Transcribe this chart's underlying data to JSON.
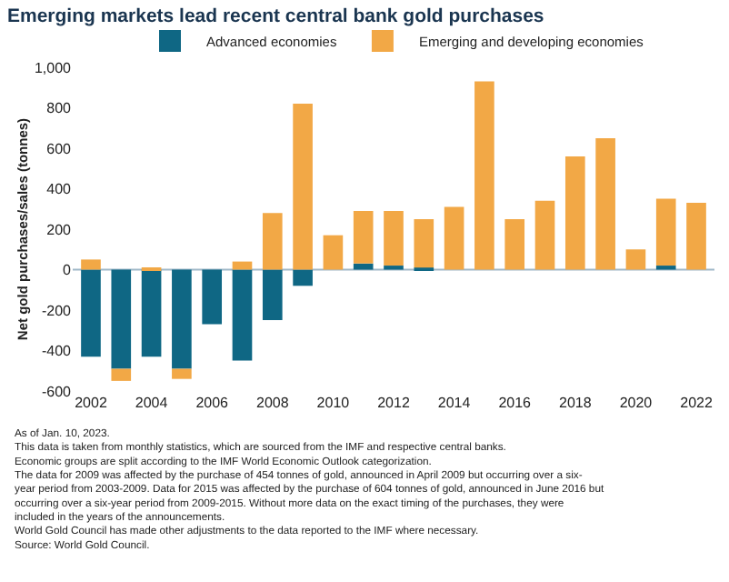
{
  "chart_data": {
    "type": "bar",
    "stacked": true,
    "title": "Emerging markets lead recent central bank gold purchases",
    "ylabel": "Net gold purchases/sales (tonnes)",
    "categories": [
      "2002",
      null,
      "2004",
      null,
      "2006",
      null,
      "2008",
      null,
      "2010",
      null,
      "2012",
      null,
      "2014",
      null,
      "2016",
      null,
      "2018",
      null,
      "2020",
      null,
      "2022"
    ],
    "series": [
      {
        "name": "Advanced economies",
        "color": "#0f6784",
        "values": [
          -430,
          -490,
          -430,
          -490,
          -270,
          -450,
          -250,
          -80,
          0,
          30,
          20,
          10,
          0,
          0,
          0,
          0,
          0,
          0,
          0,
          20,
          0
        ]
      },
      {
        "name": "Emerging and developing economies",
        "color": "#f2a846",
        "values": [
          50,
          -60,
          10,
          -50,
          0,
          40,
          280,
          820,
          170,
          260,
          270,
          240,
          310,
          930,
          250,
          340,
          560,
          650,
          100,
          330,
          330
        ]
      }
    ],
    "ylim": [
      -600,
      1000
    ],
    "yticks": [
      -600,
      -400,
      -200,
      0,
      200,
      400,
      600,
      800,
      {
        "value": 1000,
        "label": "1,000"
      }
    ],
    "legend": "top",
    "ref_lines": [
      {
        "axis": "y",
        "value": 0,
        "color": "#9fb8c8"
      }
    ],
    "annotations": [
      "As of Jan. 10, 2023.",
      "This data is taken from monthly statistics, which are sourced from the IMF and respective central banks.",
      "Economic groups are split according to the IMF World Economic Outlook categorization.",
      "The data for 2009 was affected by the purchase of 454 tonnes of gold, announced in April 2009 but occurring over a six-year period from 2003-2009. Data for 2015 was affected by the purchase of 604 tonnes of gold, announced in June 2016 but occurring over a six-year period from 2009-2015. Without more data on the exact timing of the purchases, they were included in the years of the announcements.",
      "World Gold Council has made other adjustments to the data reported to the IMF where necessary.",
      "Source: World Gold Council."
    ]
  }
}
